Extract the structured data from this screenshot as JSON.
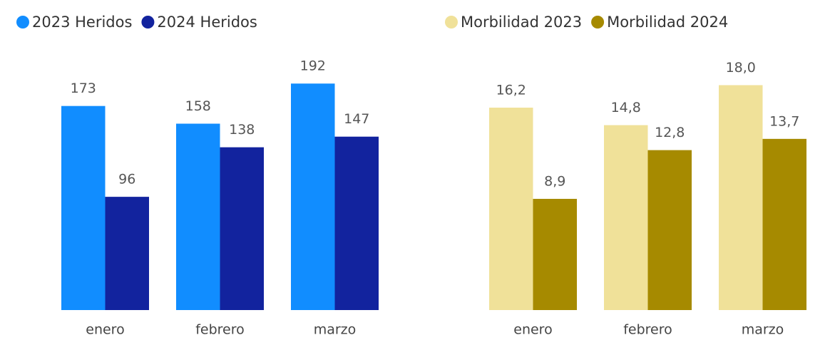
{
  "chart_data": [
    {
      "type": "bar",
      "categories": [
        "enero",
        "febrero",
        "marzo"
      ],
      "series": [
        {
          "name": "2023 Heridos",
          "color": "#118dff",
          "values": [
            173,
            158,
            192
          ]
        },
        {
          "name": "2024 Heridos",
          "color": "#12239e",
          "values": [
            96,
            138,
            147
          ]
        }
      ],
      "ylim": [
        0,
        200
      ]
    },
    {
      "type": "bar",
      "categories": [
        "enero",
        "febrero",
        "marzo"
      ],
      "series": [
        {
          "name": "Morbilidad 2023",
          "color": "#f0e199",
          "values": [
            16.2,
            14.8,
            18.0
          ],
          "value_labels": [
            "16,2",
            "14,8",
            "18,0"
          ]
        },
        {
          "name": "Morbilidad 2024",
          "color": "#a68a00",
          "values": [
            8.9,
            12.8,
            13.7
          ],
          "value_labels": [
            "8,9",
            "12,8",
            "13,7"
          ]
        }
      ],
      "ylim": [
        0,
        20
      ]
    }
  ]
}
